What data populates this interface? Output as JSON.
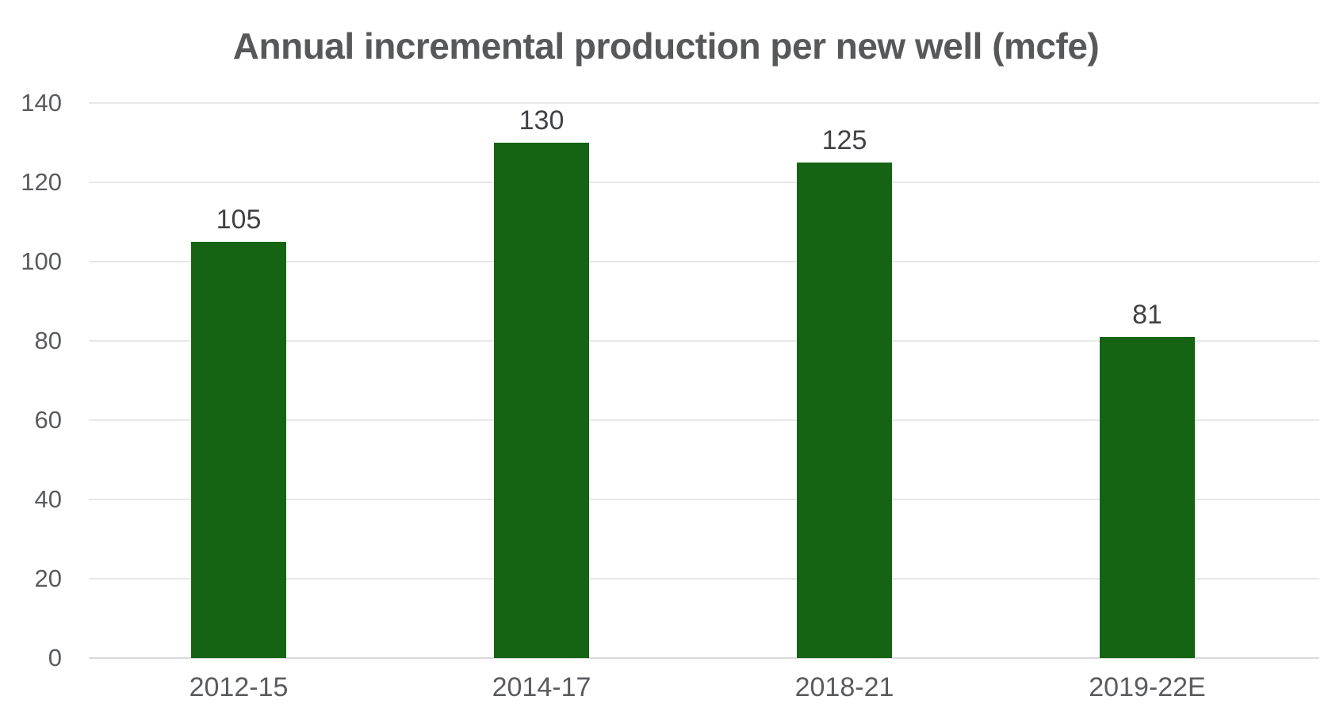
{
  "chart_data": {
    "type": "bar",
    "title": "Annual incremental production per new well (mcfe)",
    "categories": [
      "2012-15",
      "2014-17",
      "2018-21",
      "2019-22E"
    ],
    "values": [
      105,
      130,
      125,
      81
    ],
    "xlabel": "",
    "ylabel": "",
    "ylim": [
      0,
      140
    ],
    "yticks": [
      0,
      20,
      40,
      60,
      80,
      100,
      120,
      140
    ],
    "grid": true,
    "legend": false,
    "value_labels_shown": true,
    "colors": {
      "bar": "#156413",
      "title_text": "#57585a",
      "value_label_text": "#404245",
      "axis_tick_text": "#595b5e",
      "gridline": "#e8e8e8",
      "baseline": "#d9dadb",
      "background": "#ffffff"
    }
  }
}
